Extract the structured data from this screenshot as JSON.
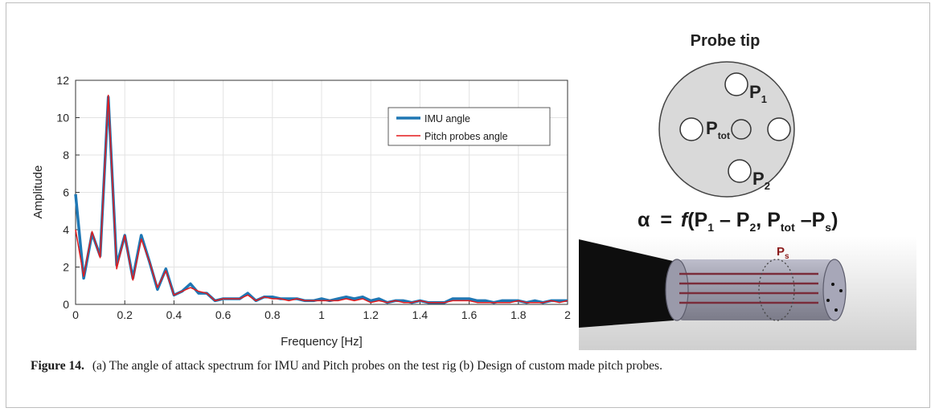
{
  "chart_data": {
    "type": "line",
    "title": "",
    "xlabel": "Frequency [Hz]",
    "ylabel": "Amplitude",
    "xlim": [
      0,
      2
    ],
    "ylim": [
      0,
      12
    ],
    "xticks": [
      "0",
      "0.2",
      "0.4",
      "0.6",
      "0.8",
      "1",
      "1.2",
      "1.4",
      "1.6",
      "1.8",
      "2"
    ],
    "yticks": [
      "0",
      "2",
      "4",
      "6",
      "8",
      "10",
      "12"
    ],
    "grid": true,
    "legend_position": "top-right",
    "series": [
      {
        "name": "IMU angle",
        "color": "#1f77b4",
        "x": [
          0,
          0.033,
          0.067,
          0.1,
          0.133,
          0.167,
          0.2,
          0.233,
          0.267,
          0.3,
          0.333,
          0.367,
          0.4,
          0.433,
          0.467,
          0.5,
          0.533,
          0.567,
          0.6,
          0.633,
          0.667,
          0.7,
          0.733,
          0.767,
          0.8,
          0.833,
          0.867,
          0.9,
          0.933,
          0.967,
          1.0,
          1.033,
          1.067,
          1.1,
          1.133,
          1.167,
          1.2,
          1.233,
          1.267,
          1.3,
          1.333,
          1.367,
          1.4,
          1.433,
          1.467,
          1.5,
          1.533,
          1.567,
          1.6,
          1.633,
          1.667,
          1.7,
          1.733,
          1.767,
          1.8,
          1.833,
          1.867,
          1.9,
          1.933,
          1.967,
          2.0
        ],
        "values": [
          5.9,
          1.4,
          3.8,
          2.6,
          11.1,
          2.1,
          3.7,
          1.4,
          3.7,
          2.3,
          0.8,
          1.9,
          0.5,
          0.7,
          1.1,
          0.6,
          0.6,
          0.2,
          0.3,
          0.3,
          0.3,
          0.6,
          0.2,
          0.4,
          0.4,
          0.3,
          0.3,
          0.3,
          0.2,
          0.2,
          0.3,
          0.2,
          0.3,
          0.4,
          0.3,
          0.4,
          0.2,
          0.3,
          0.1,
          0.2,
          0.2,
          0.1,
          0.2,
          0.1,
          0.1,
          0.1,
          0.3,
          0.3,
          0.3,
          0.2,
          0.2,
          0.1,
          0.2,
          0.2,
          0.2,
          0.1,
          0.2,
          0.1,
          0.2,
          0.2,
          0.2
        ]
      },
      {
        "name": "Pitch probes angle",
        "color": "#e31a1c",
        "x": [
          0,
          0.033,
          0.067,
          0.1,
          0.133,
          0.167,
          0.2,
          0.233,
          0.267,
          0.3,
          0.333,
          0.367,
          0.4,
          0.433,
          0.467,
          0.5,
          0.533,
          0.567,
          0.6,
          0.633,
          0.667,
          0.7,
          0.733,
          0.767,
          0.8,
          0.833,
          0.867,
          0.9,
          0.933,
          0.967,
          1.0,
          1.033,
          1.067,
          1.1,
          1.133,
          1.167,
          1.2,
          1.233,
          1.267,
          1.3,
          1.333,
          1.367,
          1.4,
          1.433,
          1.467,
          1.5,
          1.533,
          1.567,
          1.6,
          1.633,
          1.667,
          1.7,
          1.733,
          1.767,
          1.8,
          1.833,
          1.867,
          1.9,
          1.933,
          1.967,
          2.0
        ],
        "values": [
          4.0,
          1.5,
          3.9,
          2.5,
          11.2,
          1.9,
          3.7,
          1.3,
          3.5,
          2.3,
          0.9,
          1.8,
          0.5,
          0.7,
          0.9,
          0.7,
          0.6,
          0.2,
          0.3,
          0.3,
          0.3,
          0.5,
          0.2,
          0.4,
          0.3,
          0.3,
          0.2,
          0.3,
          0.2,
          0.2,
          0.2,
          0.2,
          0.2,
          0.3,
          0.2,
          0.3,
          0.1,
          0.2,
          0.1,
          0.2,
          0.1,
          0.1,
          0.2,
          0.1,
          0.1,
          0.1,
          0.2,
          0.2,
          0.2,
          0.1,
          0.1,
          0.1,
          0.1,
          0.1,
          0.2,
          0.1,
          0.1,
          0.1,
          0.2,
          0.1,
          0.2
        ]
      }
    ]
  },
  "diagram": {
    "title": "Probe tip",
    "p1_main": "P",
    "p1_sub": "1",
    "p2_main": "P",
    "p2_sub": "2",
    "ptot_main": "P",
    "ptot_sub": "tot",
    "formula_alpha": "α",
    "formula_eq": "=",
    "formula_f": "f",
    "formula_parts": [
      "(P",
      "1",
      " – P",
      "2",
      ", P",
      "tot",
      " –P",
      "s",
      ")"
    ],
    "ps_main": "P",
    "ps_sub": "s",
    "colors": {
      "circle_fill": "#d9d9d9",
      "sensor_fill": "#ffffff",
      "ps_label": "#8b1a1a",
      "probe_body": "#8a8a9a",
      "cable": "#111111"
    }
  },
  "caption": {
    "label": "Figure 14.",
    "text": "(a) The angle of attack spectrum for IMU and Pitch probes on the test rig (b) Design of custom made pitch probes."
  }
}
